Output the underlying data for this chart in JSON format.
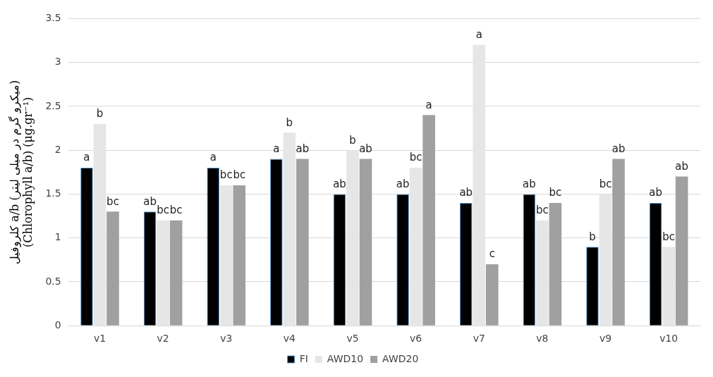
{
  "chart_data": {
    "type": "bar",
    "ylabel": "کلروفیل a/b (میکرو گرم در میلی لیتر)\n(Chlorophyll a/b) (μg.gr⁻¹)",
    "categories": [
      "v1",
      "v2",
      "v3",
      "v4",
      "v5",
      "v6",
      "v7",
      "v8",
      "v9",
      "v10"
    ],
    "series": [
      {
        "name": "FI",
        "color": "#000000",
        "values": [
          1.8,
          1.3,
          1.8,
          1.9,
          1.5,
          1.5,
          1.4,
          1.5,
          0.9,
          1.4
        ],
        "value_labels": [
          "a",
          "ab",
          "a",
          "a",
          "ab",
          "ab",
          "ab",
          "ab",
          "b",
          "ab"
        ]
      },
      {
        "name": "AWD10",
        "color": "#e6e6e6",
        "values": [
          2.3,
          1.2,
          1.6,
          2.2,
          2.0,
          1.8,
          3.2,
          1.2,
          1.5,
          0.9
        ],
        "value_labels": [
          "b",
          "bc",
          "bc",
          "b",
          "b",
          "bc",
          "a",
          "bc",
          "bc",
          "bc"
        ]
      },
      {
        "name": "AWD20",
        "color": "#a0a0a0",
        "values": [
          1.3,
          1.2,
          1.6,
          1.9,
          1.9,
          2.4,
          0.7,
          1.4,
          1.9,
          1.7
        ],
        "value_labels": [
          "bc",
          "bc",
          "bc",
          "ab",
          "ab",
          "a",
          "c",
          "bc",
          "ab",
          "ab"
        ]
      }
    ],
    "ylim": [
      0,
      3.5
    ],
    "yticks": [
      0,
      0.5,
      1,
      1.5,
      2,
      2.5,
      3,
      3.5
    ],
    "grid": "y",
    "legend": "bottom"
  }
}
